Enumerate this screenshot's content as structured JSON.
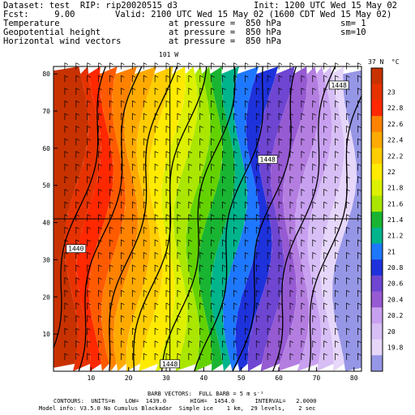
{
  "header": {
    "dataset": "Dataset: test  RIP: rip20020515 d3",
    "init": "Init: 1200 UTC Wed 15 May 02",
    "fcst": "Fcst:     9.00",
    "valid": "Valid: 2100 UTC Wed 15 May 02 (1600 CDT Wed 15 May 02)",
    "fields": [
      {
        "name": "Temperature",
        "level": "at pressure =  850 hPa",
        "sm": "sm= 1"
      },
      {
        "name": "Geopotential height",
        "level": "at pressure =  850 hPa",
        "sm": "sm=10"
      },
      {
        "name": "Horizontal wind vectors",
        "level": "at pressure =  850 hPa",
        "sm": ""
      }
    ]
  },
  "colorbar": {
    "title": "37 N  °C",
    "labels": [
      "23",
      "22.8",
      "22.6",
      "22.4",
      "22.2",
      "22",
      "21.8",
      "21.6",
      "21.4",
      "21.2",
      "21",
      "20.8",
      "20.6",
      "20.4",
      "20.2",
      "20",
      "19.8"
    ],
    "colors": [
      "#c83200",
      "#e63200",
      "#ff2800",
      "#ff5a00",
      "#ff8200",
      "#ffaa00",
      "#ffcd00",
      "#ffeb00",
      "#dcf000",
      "#aae600",
      "#64d200",
      "#19b432",
      "#00b48c",
      "#1e78ff",
      "#1e32dc",
      "#6e46d2",
      "#965ad2",
      "#b47ee1",
      "#c8a0f0",
      "#d7bef5",
      "#e6d7fa",
      "#9696e6"
    ]
  },
  "map": {
    "cross_label": "101 W"
  },
  "chart_data": {
    "type": "heatmap",
    "title": "",
    "x": {
      "range": [
        0,
        82
      ],
      "ticks": [
        10,
        20,
        30,
        40,
        50,
        60,
        70,
        80
      ]
    },
    "y": {
      "range": [
        0,
        82
      ],
      "ticks": [
        10,
        20,
        30,
        40,
        50,
        60,
        70,
        80
      ]
    },
    "field": {
      "name": "Temperature",
      "units": "°C",
      "min": 19.8,
      "max": 23.0,
      "gradient": "decreasing west to east"
    },
    "contour_labels": [
      {
        "text": "1448",
        "x": 76,
        "y": 77
      },
      {
        "text": "1448",
        "x": 57,
        "y": 57
      },
      {
        "text": "1440",
        "x": 6,
        "y": 33
      },
      {
        "text": "1448",
        "x": 31,
        "y": 2
      }
    ],
    "reference_lines": {
      "vertical_x": 31,
      "horizontal_y": 41
    },
    "wind_barbs": "spaced every ~3 grid points, mostly southerly (barbs)",
    "footer": [
      "BARB VECTORS:  FULL BARB = 5 m s⁻¹",
      "CONTOURS:  UNITS=m   LOW=  1439.0       HIGH=  1454.0      INTERVAL=   2.0000",
      "Model info: V3.5.0 No Cumulus Blackadar  Simple ice    1 km,  29 levels,    2 sec"
    ]
  }
}
